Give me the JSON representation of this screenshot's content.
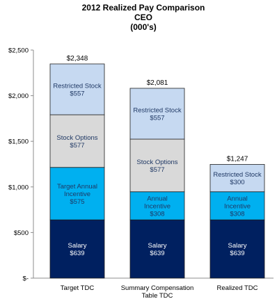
{
  "chart_data": {
    "type": "bar",
    "stacked": true,
    "title_lines": [
      "2012 Realized Pay Comparison",
      "CEO",
      "(000's)"
    ],
    "categories": [
      "Target TDC",
      "Summary Compensation Table TDC",
      "Realized TDC"
    ],
    "ylim": [
      0,
      2500
    ],
    "yticks": [
      0,
      500,
      1000,
      1500,
      2000,
      2500
    ],
    "ytick_labels": [
      "$-",
      "$500",
      "$1,000",
      "$1,500",
      "$2,000",
      "$2,500"
    ],
    "grid": false,
    "legend": "none",
    "series": [
      {
        "color": "#002060",
        "text_color": "#ffffff",
        "segment_labels": [
          [
            "Salary",
            "$639"
          ],
          [
            "Salary",
            "$639"
          ],
          [
            "Salary",
            "$639"
          ]
        ],
        "values": [
          639,
          639,
          639
        ]
      },
      {
        "color": "#00b0f0",
        "text_color": "#1f3864",
        "segment_labels": [
          [
            "Target Annual",
            "Incentive",
            "$575"
          ],
          [
            "Annual",
            "Incentive",
            "$308"
          ],
          [
            "Annual",
            "Incentive",
            "$308"
          ]
        ],
        "values": [
          575,
          308,
          308
        ]
      },
      {
        "color": "#d9d9d9",
        "text_color": "#1f3864",
        "segment_labels": [
          [
            "Stock Options",
            "$577"
          ],
          [
            "Stock Options",
            "$577"
          ],
          null
        ],
        "values": [
          577,
          577,
          0
        ]
      },
      {
        "color": "#c6d9f1",
        "text_color": "#1f3864",
        "segment_labels": [
          [
            "Restricted Stock",
            "$557"
          ],
          [
            "Restricted Stock",
            "$557"
          ],
          [
            "Restricted Stock",
            "$300"
          ]
        ],
        "values": [
          557,
          557,
          300
        ]
      }
    ],
    "totals": [
      "$2,348",
      "$2,081",
      "$1,247"
    ],
    "total_values": [
      2348,
      2081,
      1247
    ]
  }
}
